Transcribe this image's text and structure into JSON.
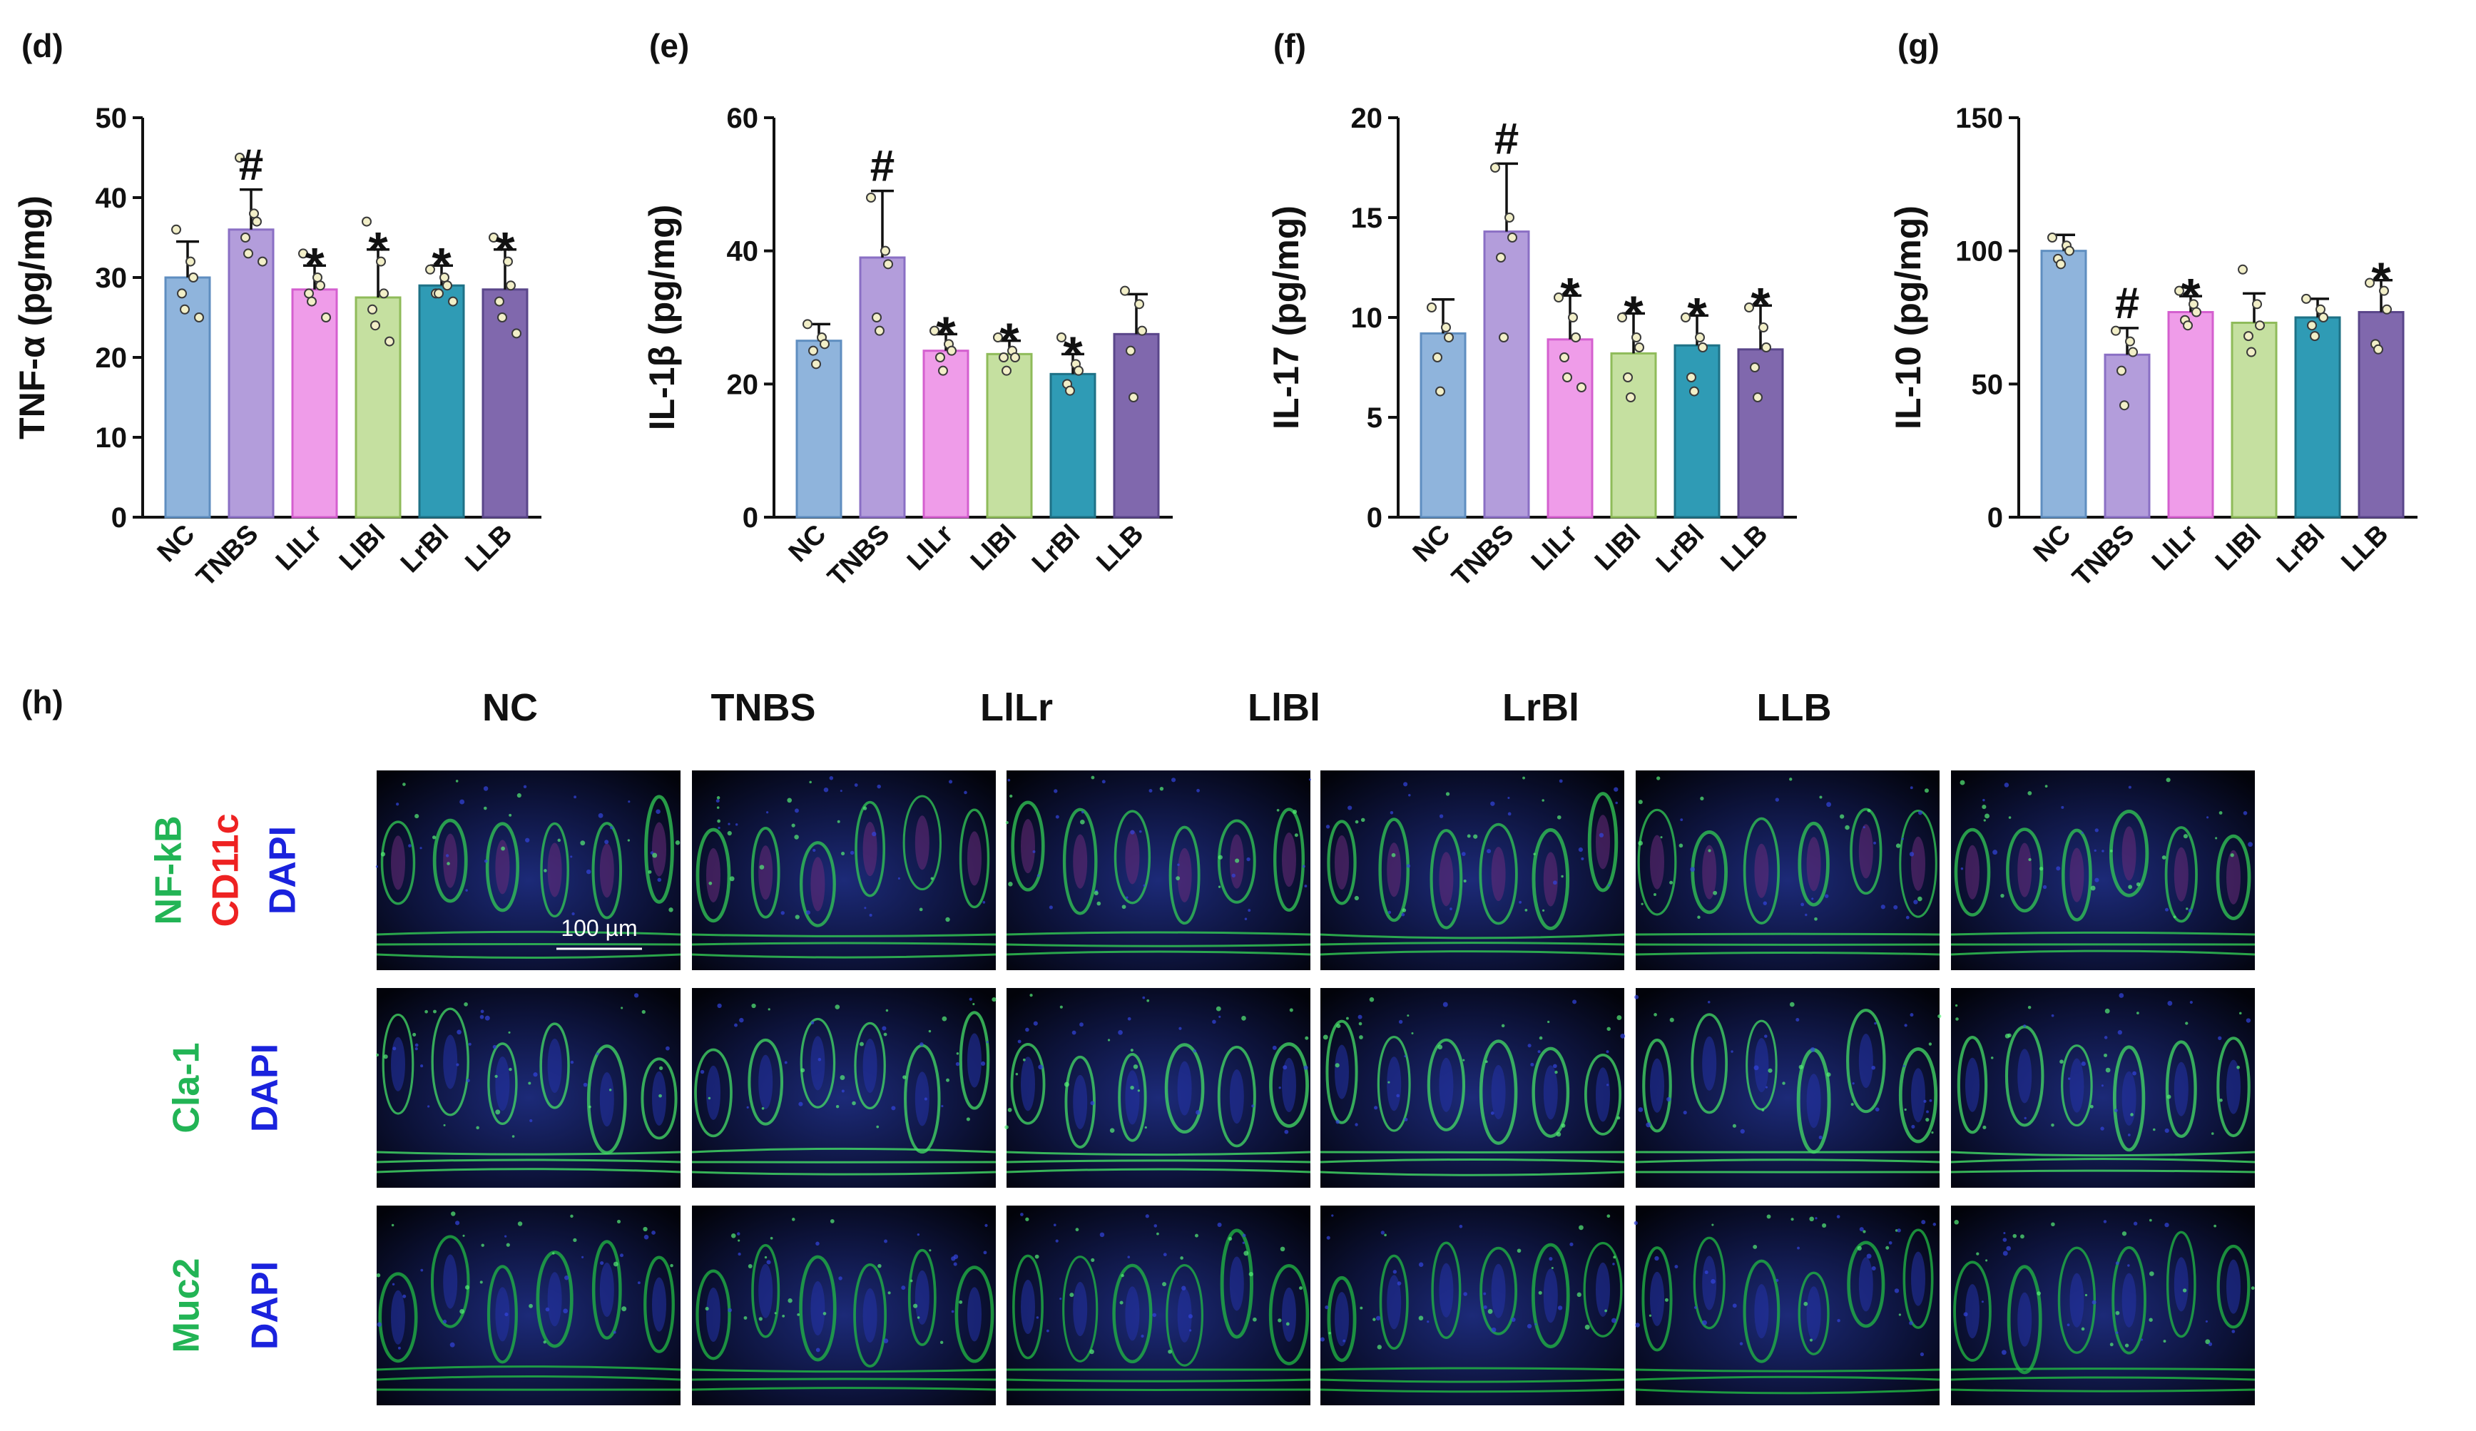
{
  "chart_data": [
    {
      "panel": "(d)",
      "type": "bar",
      "ylabel": "TNF-α (pg/mg)",
      "ylim": [
        0,
        50
      ],
      "yticks": [
        0,
        10,
        20,
        30,
        40,
        50
      ],
      "categories": [
        "NC",
        "TNBS",
        "LlLr",
        "LlBl",
        "LrBl",
        "LLB"
      ],
      "values": [
        30,
        36,
        28.5,
        27.5,
        29,
        28.5
      ],
      "errors": [
        4.5,
        5,
        3,
        6,
        2.5,
        5
      ],
      "marks": [
        "",
        "#",
        "*",
        "*",
        "*",
        "*"
      ],
      "points": [
        [
          36,
          32,
          30,
          28,
          26,
          25
        ],
        [
          45,
          38,
          37,
          35,
          33,
          32
        ],
        [
          33,
          30,
          29,
          28,
          27,
          25
        ],
        [
          37,
          32,
          28,
          26,
          24,
          22
        ],
        [
          31,
          30,
          29,
          28,
          28,
          27
        ],
        [
          35,
          32,
          29,
          27,
          25,
          23
        ]
      ]
    },
    {
      "panel": "(e)",
      "type": "bar",
      "ylabel": "IL-1β (pg/mg)",
      "ylim": [
        0,
        60
      ],
      "yticks": [
        0,
        20,
        40,
        60
      ],
      "categories": [
        "NC",
        "TNBS",
        "LlLr",
        "LlBl",
        "LrBl",
        "LLB"
      ],
      "values": [
        26.5,
        39,
        25,
        24.5,
        21.5,
        27.5
      ],
      "errors": [
        2.5,
        10,
        2.5,
        2,
        3,
        6
      ],
      "marks": [
        "",
        "#",
        "*",
        "*",
        "*",
        ""
      ],
      "points": [
        [
          29,
          27,
          26,
          25,
          23
        ],
        [
          48,
          40,
          38,
          30,
          28
        ],
        [
          28,
          26,
          25,
          24,
          22
        ],
        [
          27,
          25,
          24,
          24,
          22
        ],
        [
          27,
          23,
          22,
          20,
          19
        ],
        [
          34,
          32,
          28,
          25,
          18
        ]
      ]
    },
    {
      "panel": "(f)",
      "type": "bar",
      "ylabel": "IL-17 (pg/mg)",
      "ylim": [
        0,
        20
      ],
      "yticks": [
        0,
        5,
        10,
        15,
        20
      ],
      "categories": [
        "NC",
        "TNBS",
        "LlLr",
        "LlBl",
        "LrBl",
        "LLB"
      ],
      "values": [
        9.2,
        14.3,
        8.9,
        8.2,
        8.6,
        8.4
      ],
      "errors": [
        1.7,
        3.4,
        2.2,
        2,
        1.5,
        2.2
      ],
      "marks": [
        "",
        "#",
        "*",
        "*",
        "*",
        "*"
      ],
      "points": [
        [
          10.5,
          9.5,
          9,
          8,
          6.3
        ],
        [
          17.5,
          15,
          14,
          13,
          9
        ],
        [
          11,
          10,
          9,
          8,
          7,
          6.5
        ],
        [
          10,
          9,
          8.5,
          7,
          6
        ],
        [
          10,
          9,
          8.5,
          7,
          6.3
        ],
        [
          10.5,
          9.5,
          8.5,
          7.5,
          6
        ]
      ]
    },
    {
      "panel": "(g)",
      "type": "bar",
      "ylabel": "IL-10 (pg/mg)",
      "ylim": [
        0,
        150
      ],
      "yticks": [
        0,
        50,
        100,
        150
      ],
      "categories": [
        "NC",
        "TNBS",
        "LlLr",
        "LlBl",
        "LrBl",
        "LLB"
      ],
      "values": [
        100,
        61,
        77,
        73,
        75,
        77
      ],
      "errors": [
        6,
        10,
        6,
        11,
        7,
        12
      ],
      "marks": [
        "",
        "#",
        "*",
        "",
        "",
        "*"
      ],
      "points": [
        [
          105,
          102,
          100,
          97,
          95
        ],
        [
          70,
          66,
          62,
          55,
          42
        ],
        [
          85,
          80,
          77,
          74,
          72
        ],
        [
          93,
          80,
          72,
          68,
          62
        ],
        [
          82,
          78,
          75,
          72,
          68
        ],
        [
          88,
          85,
          78,
          65,
          63
        ]
      ]
    }
  ],
  "series_colors": [
    "#8fb4dc",
    "#b39ddb",
    "#ef9ce9",
    "#c5e0a0",
    "#2f9bb5",
    "#8068ad"
  ],
  "series_edges": [
    "#5f8ec0",
    "#8a6fc4",
    "#d45fcf",
    "#8fbb5a",
    "#1e7186",
    "#5a468a"
  ],
  "panel_h": {
    "label": "(h)",
    "columns": [
      "NC",
      "TNBS",
      "LlLr",
      "LlBl",
      "LrBl",
      "LLB"
    ],
    "rows": [
      {
        "labels": [
          {
            "text": "NF-kB",
            "color": "#22b455"
          },
          {
            "text": "CD11c",
            "color": "#ee2222"
          },
          {
            "text": "DAPI",
            "color": "#1a22dd"
          }
        ]
      },
      {
        "labels": [
          {
            "text": "Cla-1",
            "color": "#22b455"
          },
          {
            "text": "DAPI",
            "color": "#1a22dd"
          }
        ]
      },
      {
        "labels": [
          {
            "text": "Muc2",
            "color": "#22b455"
          },
          {
            "text": "DAPI",
            "color": "#1a22dd"
          }
        ]
      }
    ],
    "scale_bar": "100 µm"
  }
}
